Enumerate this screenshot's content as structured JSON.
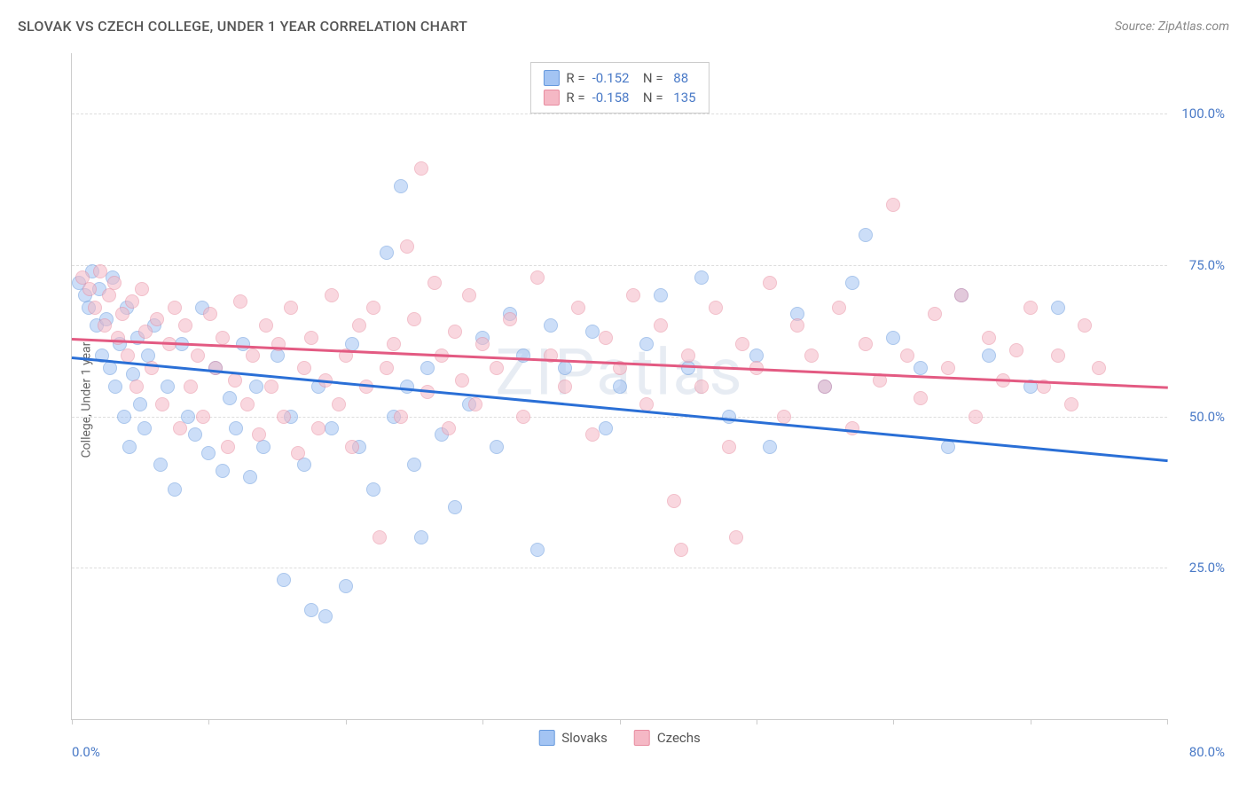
{
  "header": {
    "title": "SLOVAK VS CZECH COLLEGE, UNDER 1 YEAR CORRELATION CHART",
    "source": "Source: ZipAtlas.com"
  },
  "watermark": "ZIPatlas",
  "chart": {
    "type": "scatter",
    "y_axis_title": "College, Under 1 year",
    "xlim": [
      0,
      80
    ],
    "ylim": [
      0,
      110
    ],
    "x_ticks": [
      0,
      10,
      20,
      30,
      40,
      50,
      60,
      70,
      80
    ],
    "x_tick_labels": {
      "left": "0.0%",
      "right": "80.0%"
    },
    "y_gridlines": [
      25,
      50,
      75,
      100
    ],
    "y_tick_labels": [
      "25.0%",
      "50.0%",
      "75.0%",
      "100.0%"
    ],
    "grid_color": "#dddddd",
    "axis_color": "#cccccc",
    "background_color": "#ffffff",
    "axis_label_color": "#4a7ac7",
    "title_color": "#555555",
    "point_radius": 8,
    "point_opacity": 0.55,
    "series": [
      {
        "name": "Slovaks",
        "fill_color": "#a3c4f3",
        "stroke_color": "#6699dd",
        "trend_color": "#2a6fd6",
        "correlation_R": "-0.152",
        "correlation_N": "88",
        "trend": {
          "x1": 0,
          "y1": 60,
          "x2": 80,
          "y2": 43
        },
        "points": [
          [
            0.5,
            72
          ],
          [
            1,
            70
          ],
          [
            1.2,
            68
          ],
          [
            1.5,
            74
          ],
          [
            1.8,
            65
          ],
          [
            2,
            71
          ],
          [
            2.2,
            60
          ],
          [
            2.5,
            66
          ],
          [
            2.8,
            58
          ],
          [
            3,
            73
          ],
          [
            3.2,
            55
          ],
          [
            3.5,
            62
          ],
          [
            3.8,
            50
          ],
          [
            4,
            68
          ],
          [
            4.2,
            45
          ],
          [
            4.5,
            57
          ],
          [
            4.8,
            63
          ],
          [
            5,
            52
          ],
          [
            5.3,
            48
          ],
          [
            5.6,
            60
          ],
          [
            6,
            65
          ],
          [
            6.5,
            42
          ],
          [
            7,
            55
          ],
          [
            7.5,
            38
          ],
          [
            8,
            62
          ],
          [
            8.5,
            50
          ],
          [
            9,
            47
          ],
          [
            9.5,
            68
          ],
          [
            10,
            44
          ],
          [
            10.5,
            58
          ],
          [
            11,
            41
          ],
          [
            11.5,
            53
          ],
          [
            12,
            48
          ],
          [
            12.5,
            62
          ],
          [
            13,
            40
          ],
          [
            13.5,
            55
          ],
          [
            14,
            45
          ],
          [
            15,
            60
          ],
          [
            15.5,
            23
          ],
          [
            16,
            50
          ],
          [
            17,
            42
          ],
          [
            17.5,
            18
          ],
          [
            18,
            55
          ],
          [
            18.5,
            17
          ],
          [
            19,
            48
          ],
          [
            20,
            22
          ],
          [
            20.5,
            62
          ],
          [
            21,
            45
          ],
          [
            22,
            38
          ],
          [
            23,
            77
          ],
          [
            23.5,
            50
          ],
          [
            24,
            88
          ],
          [
            24.5,
            55
          ],
          [
            25,
            42
          ],
          [
            25.5,
            30
          ],
          [
            26,
            58
          ],
          [
            27,
            47
          ],
          [
            28,
            35
          ],
          [
            29,
            52
          ],
          [
            30,
            63
          ],
          [
            31,
            45
          ],
          [
            32,
            67
          ],
          [
            33,
            60
          ],
          [
            34,
            28
          ],
          [
            35,
            65
          ],
          [
            36,
            58
          ],
          [
            38,
            64
          ],
          [
            39,
            48
          ],
          [
            40,
            55
          ],
          [
            42,
            62
          ],
          [
            43,
            70
          ],
          [
            45,
            58
          ],
          [
            46,
            73
          ],
          [
            48,
            50
          ],
          [
            50,
            60
          ],
          [
            51,
            45
          ],
          [
            53,
            67
          ],
          [
            55,
            55
          ],
          [
            57,
            72
          ],
          [
            58,
            80
          ],
          [
            60,
            63
          ],
          [
            62,
            58
          ],
          [
            64,
            45
          ],
          [
            65,
            70
          ],
          [
            67,
            60
          ],
          [
            70,
            55
          ],
          [
            72,
            68
          ]
        ]
      },
      {
        "name": "Czechs",
        "fill_color": "#f5b8c5",
        "stroke_color": "#e88ca0",
        "trend_color": "#e35a82",
        "correlation_R": "-0.158",
        "correlation_N": "135",
        "trend": {
          "x1": 0,
          "y1": 63,
          "x2": 80,
          "y2": 55
        },
        "points": [
          [
            0.8,
            73
          ],
          [
            1.3,
            71
          ],
          [
            1.7,
            68
          ],
          [
            2.1,
            74
          ],
          [
            2.4,
            65
          ],
          [
            2.7,
            70
          ],
          [
            3.1,
            72
          ],
          [
            3.4,
            63
          ],
          [
            3.7,
            67
          ],
          [
            4.1,
            60
          ],
          [
            4.4,
            69
          ],
          [
            4.7,
            55
          ],
          [
            5.1,
            71
          ],
          [
            5.4,
            64
          ],
          [
            5.8,
            58
          ],
          [
            6.2,
            66
          ],
          [
            6.6,
            52
          ],
          [
            7.1,
            62
          ],
          [
            7.5,
            68
          ],
          [
            7.9,
            48
          ],
          [
            8.3,
            65
          ],
          [
            8.7,
            55
          ],
          [
            9.2,
            60
          ],
          [
            9.6,
            50
          ],
          [
            10.1,
            67
          ],
          [
            10.5,
            58
          ],
          [
            11,
            63
          ],
          [
            11.4,
            45
          ],
          [
            11.9,
            56
          ],
          [
            12.3,
            69
          ],
          [
            12.8,
            52
          ],
          [
            13.2,
            60
          ],
          [
            13.7,
            47
          ],
          [
            14.2,
            65
          ],
          [
            14.6,
            55
          ],
          [
            15.1,
            62
          ],
          [
            15.5,
            50
          ],
          [
            16,
            68
          ],
          [
            16.5,
            44
          ],
          [
            17,
            58
          ],
          [
            17.5,
            63
          ],
          [
            18,
            48
          ],
          [
            18.5,
            56
          ],
          [
            19,
            70
          ],
          [
            19.5,
            52
          ],
          [
            20,
            60
          ],
          [
            20.5,
            45
          ],
          [
            21,
            65
          ],
          [
            21.5,
            55
          ],
          [
            22,
            68
          ],
          [
            22.5,
            30
          ],
          [
            23,
            58
          ],
          [
            23.5,
            62
          ],
          [
            24,
            50
          ],
          [
            24.5,
            78
          ],
          [
            25,
            66
          ],
          [
            25.5,
            91
          ],
          [
            26,
            54
          ],
          [
            26.5,
            72
          ],
          [
            27,
            60
          ],
          [
            27.5,
            48
          ],
          [
            28,
            64
          ],
          [
            28.5,
            56
          ],
          [
            29,
            70
          ],
          [
            29.5,
            52
          ],
          [
            30,
            62
          ],
          [
            31,
            58
          ],
          [
            32,
            66
          ],
          [
            33,
            50
          ],
          [
            34,
            73
          ],
          [
            35,
            60
          ],
          [
            36,
            55
          ],
          [
            37,
            68
          ],
          [
            38,
            47
          ],
          [
            39,
            63
          ],
          [
            40,
            58
          ],
          [
            41,
            70
          ],
          [
            42,
            52
          ],
          [
            43,
            65
          ],
          [
            44,
            36
          ],
          [
            44.5,
            28
          ],
          [
            45,
            60
          ],
          [
            46,
            55
          ],
          [
            47,
            68
          ],
          [
            48,
            45
          ],
          [
            48.5,
            30
          ],
          [
            49,
            62
          ],
          [
            50,
            58
          ],
          [
            51,
            72
          ],
          [
            52,
            50
          ],
          [
            53,
            65
          ],
          [
            54,
            60
          ],
          [
            55,
            55
          ],
          [
            56,
            68
          ],
          [
            57,
            48
          ],
          [
            58,
            62
          ],
          [
            59,
            56
          ],
          [
            60,
            85
          ],
          [
            61,
            60
          ],
          [
            62,
            53
          ],
          [
            63,
            67
          ],
          [
            64,
            58
          ],
          [
            65,
            70
          ],
          [
            66,
            50
          ],
          [
            67,
            63
          ],
          [
            68,
            56
          ],
          [
            69,
            61
          ],
          [
            70,
            68
          ],
          [
            71,
            55
          ],
          [
            72,
            60
          ],
          [
            73,
            52
          ],
          [
            74,
            65
          ],
          [
            75,
            58
          ]
        ]
      }
    ],
    "bottom_legend": [
      {
        "label": "Slovaks",
        "swatch_fill": "#a3c4f3",
        "swatch_stroke": "#6699dd"
      },
      {
        "label": "Czechs",
        "swatch_fill": "#f5b8c5",
        "swatch_stroke": "#e88ca0"
      }
    ]
  }
}
